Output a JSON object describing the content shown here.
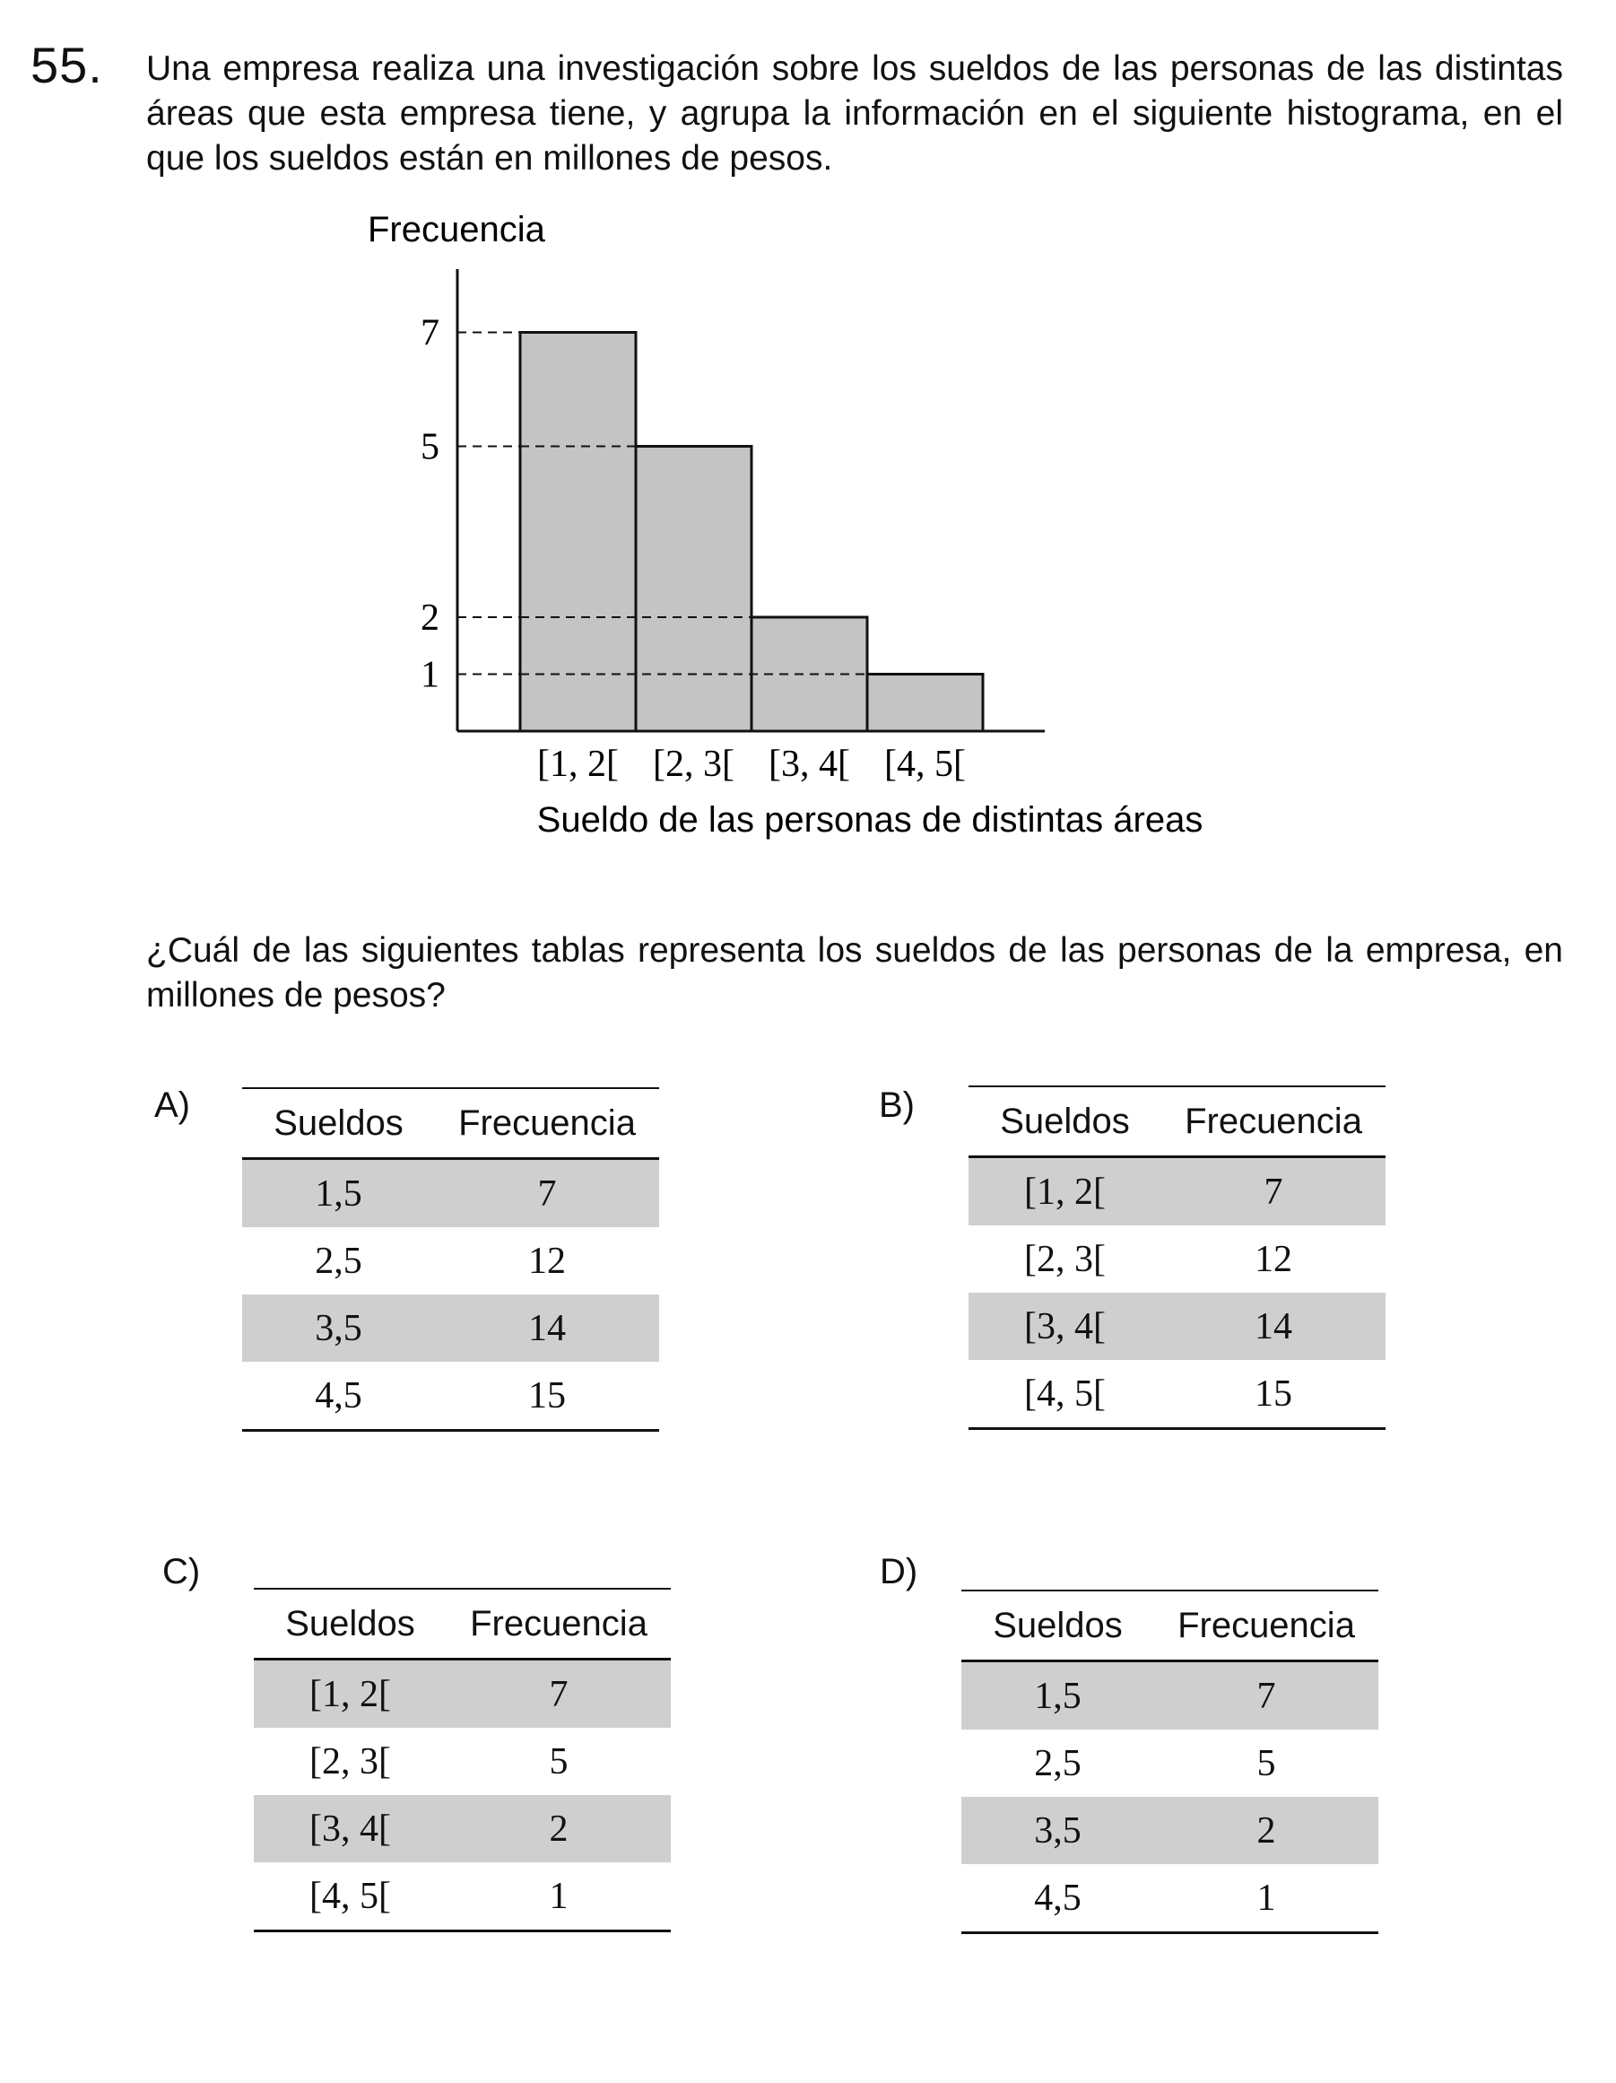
{
  "question": {
    "number": "55.",
    "stem": "Una empresa realiza una investigación sobre los sueldos de las personas de las distintas áreas que esta empresa tiene, y agrupa la información en el siguiente histograma, en el que los sueldos están en millones de pesos.",
    "prompt": "¿Cuál de las siguientes tablas representa los sueldos de las personas de la empresa, en millones de pesos?"
  },
  "chart_data": {
    "type": "bar",
    "ylabel": "Frecuencia",
    "xlabel": "Sueldo de las personas de distintas áreas",
    "categories": [
      "[1, 2[",
      "[2, 3[",
      "[3, 4[",
      "[4, 5["
    ],
    "values": [
      7,
      5,
      2,
      1
    ],
    "yticks": [
      1,
      2,
      5,
      7
    ],
    "ylim": [
      0,
      8
    ],
    "bar_color": "#c4c4c4",
    "grid": "dashed reference lines at tick values"
  },
  "options": [
    {
      "label": "A)",
      "headers": [
        "Sueldos",
        "Frecuencia"
      ],
      "rows": [
        [
          "1,5",
          "7"
        ],
        [
          "2,5",
          "12"
        ],
        [
          "3,5",
          "14"
        ],
        [
          "4,5",
          "15"
        ]
      ]
    },
    {
      "label": "B)",
      "headers": [
        "Sueldos",
        "Frecuencia"
      ],
      "rows": [
        [
          "[1, 2[",
          "7"
        ],
        [
          "[2, 3[",
          "12"
        ],
        [
          "[3, 4[",
          "14"
        ],
        [
          "[4, 5[",
          "15"
        ]
      ]
    },
    {
      "label": "C)",
      "headers": [
        "Sueldos",
        "Frecuencia"
      ],
      "rows": [
        [
          "[1, 2[",
          "7"
        ],
        [
          "[2, 3[",
          "5"
        ],
        [
          "[3, 4[",
          "2"
        ],
        [
          "[4, 5[",
          "1"
        ]
      ]
    },
    {
      "label": "D)",
      "headers": [
        "Sueldos",
        "Frecuencia"
      ],
      "rows": [
        [
          "1,5",
          "7"
        ],
        [
          "2,5",
          "5"
        ],
        [
          "3,5",
          "2"
        ],
        [
          "4,5",
          "1"
        ]
      ]
    }
  ],
  "colors": {
    "row_shade": "#cfcfcf",
    "bar_fill": "#c4c4c4"
  }
}
